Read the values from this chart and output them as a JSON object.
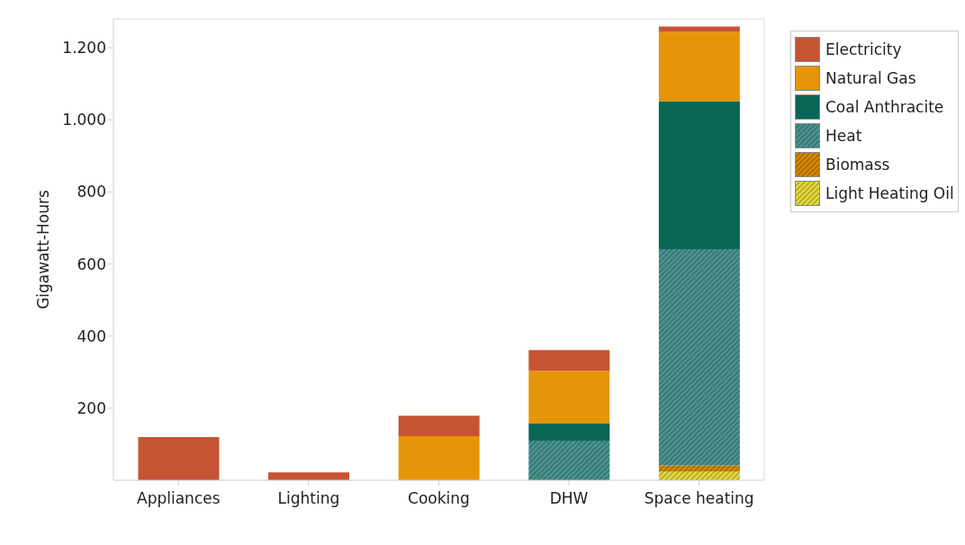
{
  "chart_data": {
    "type": "bar",
    "stacked": true,
    "ylabel": "Gigawatt-Hours",
    "categories": [
      "Appliances",
      "Lighting",
      "Cooking",
      "DHW",
      "Space heating"
    ],
    "series": [
      {
        "name": "Light Heating Oil",
        "color": "#e6dc3c",
        "values": [
          null,
          null,
          null,
          null,
          24
        ]
      },
      {
        "name": "Biomass",
        "color": "#d98a00",
        "values": [
          null,
          null,
          null,
          null,
          17
        ]
      },
      {
        "name": "Heat",
        "color": "#4a9691",
        "values": [
          null,
          null,
          null,
          110,
          600
        ]
      },
      {
        "name": "Coal Anthracite",
        "color": "#096655",
        "values": [
          null,
          null,
          null,
          47,
          411
        ]
      },
      {
        "name": "Natural Gas",
        "color": "#e69508",
        "values": [
          null,
          null,
          122,
          147,
          192
        ]
      },
      {
        "name": "Electricity",
        "color": "#c65434",
        "values": [
          120,
          22,
          57,
          57,
          15
        ]
      }
    ],
    "ylim": [
      0,
      1280
    ],
    "yticks": [
      {
        "value": 200,
        "label": "200"
      },
      {
        "value": 400,
        "label": "400"
      },
      {
        "value": 600,
        "label": "600"
      },
      {
        "value": 800,
        "label": "800"
      },
      {
        "value": 1000,
        "label": "1.000"
      },
      {
        "value": 1200,
        "label": "1.200"
      }
    ],
    "grid": false,
    "legend": "top right"
  }
}
